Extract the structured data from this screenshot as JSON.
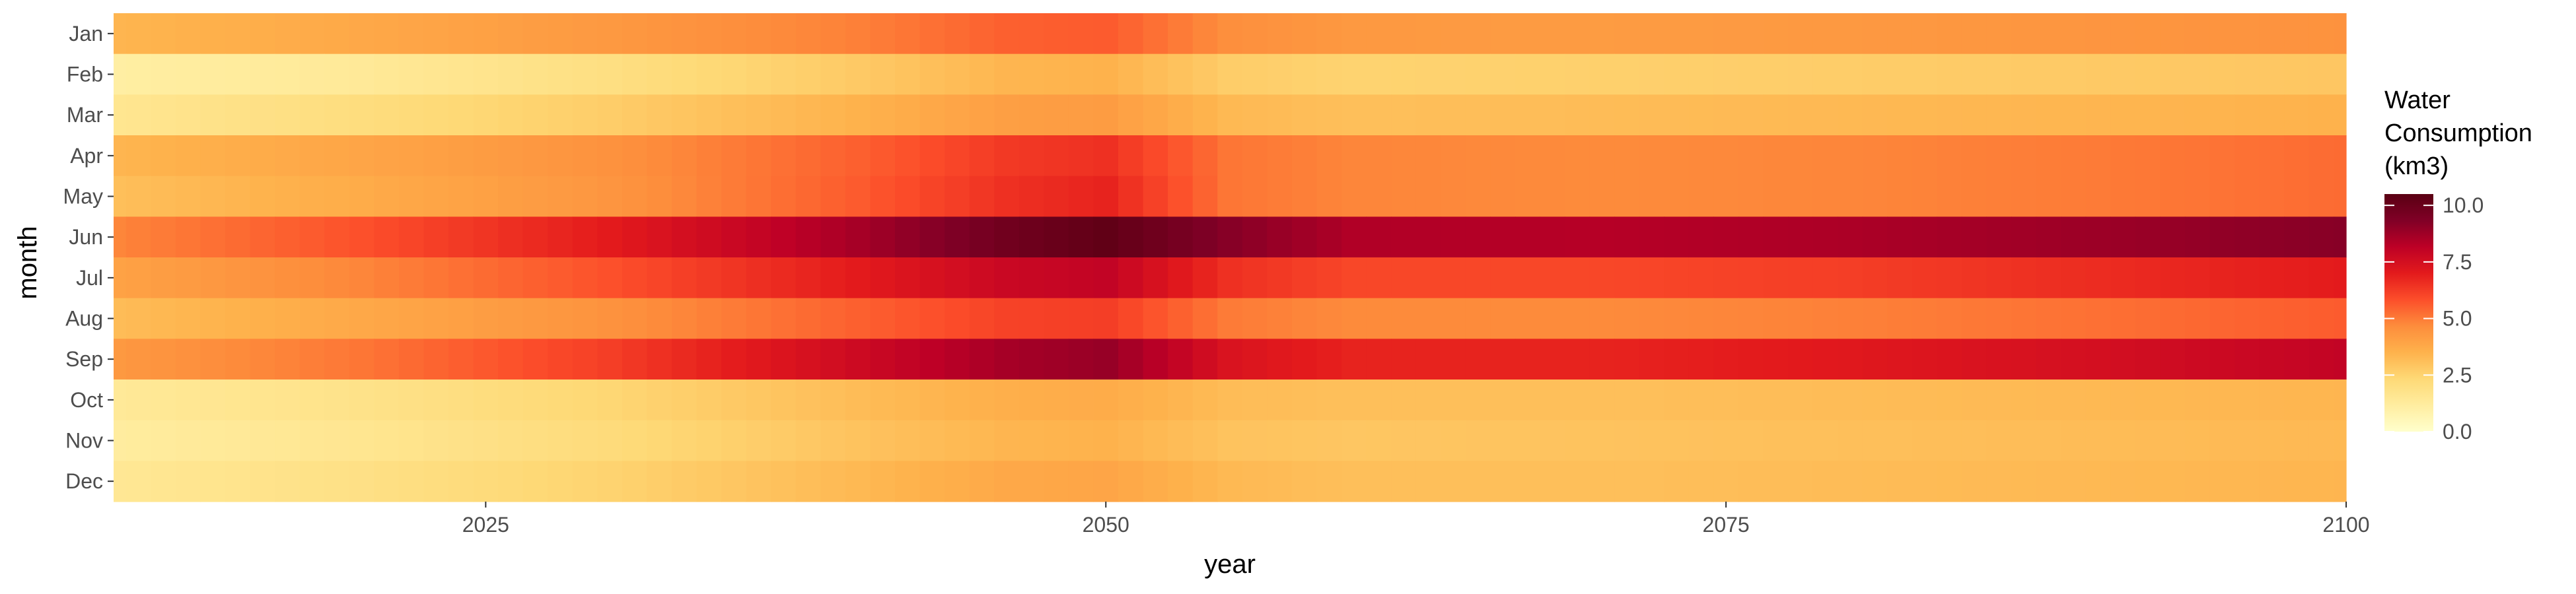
{
  "chart_data": {
    "type": "heatmap",
    "xlabel": "year",
    "ylabel": "month",
    "x_range": [
      2010,
      2100
    ],
    "x_ticks": [
      "2025",
      "2050",
      "2075",
      "2100"
    ],
    "y_categories": [
      "Jan",
      "Feb",
      "Mar",
      "Apr",
      "May",
      "Jun",
      "Jul",
      "Aug",
      "Sep",
      "Oct",
      "Nov",
      "Dec"
    ],
    "legend": {
      "title_lines": [
        "Water",
        "Consumption",
        "(km3)"
      ],
      "range": [
        0,
        10.5
      ],
      "breaks": [
        "0.0",
        "2.5",
        "5.0",
        "7.5",
        "10.0"
      ],
      "placement": "right"
    },
    "color_scale": [
      "#ffffcc",
      "#ffeda0",
      "#fed976",
      "#feb24c",
      "#fd8d3c",
      "#fc4e2a",
      "#e31a1c",
      "#bd0026",
      "#800026",
      "#5a0013"
    ],
    "grid": false,
    "year_anchors": [
      2010,
      2020,
      2030,
      2040,
      2046,
      2050,
      2055,
      2060,
      2070,
      2080,
      2090,
      2100
    ],
    "series": [
      {
        "name": "Jan",
        "values": [
          3.4,
          3.8,
          4.3,
          4.9,
          5.5,
          5.6,
          4.6,
          4.3,
          4.2,
          4.3,
          4.4,
          4.5
        ]
      },
      {
        "name": "Feb",
        "values": [
          1.1,
          1.4,
          2.0,
          2.8,
          3.4,
          3.5,
          2.7,
          2.5,
          2.6,
          2.7,
          2.8,
          2.9
        ]
      },
      {
        "name": "Mar",
        "values": [
          1.6,
          2.1,
          2.7,
          3.5,
          4.1,
          4.2,
          3.3,
          3.1,
          3.2,
          3.3,
          3.4,
          3.5
        ]
      },
      {
        "name": "Apr",
        "values": [
          3.4,
          3.9,
          4.5,
          5.5,
          6.3,
          6.5,
          5.1,
          4.8,
          4.7,
          4.8,
          5.0,
          5.3
        ]
      },
      {
        "name": "May",
        "values": [
          3.1,
          3.7,
          4.4,
          5.6,
          6.5,
          6.8,
          5.1,
          4.8,
          4.7,
          4.8,
          5.0,
          5.3
        ]
      },
      {
        "name": "Jun",
        "values": [
          4.8,
          5.8,
          7.0,
          8.6,
          9.8,
          10.3,
          9.2,
          8.4,
          8.3,
          8.5,
          8.8,
          9.2
        ]
      },
      {
        "name": "Jul",
        "values": [
          4.0,
          4.8,
          5.8,
          7.0,
          7.8,
          8.0,
          6.5,
          6.0,
          6.0,
          6.2,
          6.6,
          7.0
        ]
      },
      {
        "name": "Aug",
        "values": [
          3.2,
          3.8,
          4.5,
          5.5,
          6.1,
          6.2,
          5.0,
          4.7,
          4.7,
          4.9,
          5.2,
          5.6
        ]
      },
      {
        "name": "Sep",
        "values": [
          4.3,
          5.1,
          6.2,
          7.7,
          8.6,
          8.9,
          7.3,
          6.8,
          6.8,
          7.1,
          7.5,
          8.0
        ]
      },
      {
        "name": "Oct",
        "values": [
          1.4,
          1.8,
          2.4,
          3.2,
          3.6,
          3.7,
          3.2,
          3.1,
          3.1,
          3.2,
          3.3,
          3.4
        ]
      },
      {
        "name": "Nov",
        "values": [
          1.2,
          1.6,
          2.2,
          3.0,
          3.4,
          3.5,
          3.0,
          2.9,
          3.0,
          3.1,
          3.2,
          3.3
        ]
      },
      {
        "name": "Dec",
        "values": [
          1.5,
          1.9,
          2.5,
          3.3,
          3.8,
          3.9,
          3.3,
          3.1,
          3.1,
          3.2,
          3.3,
          3.4
        ]
      }
    ]
  }
}
